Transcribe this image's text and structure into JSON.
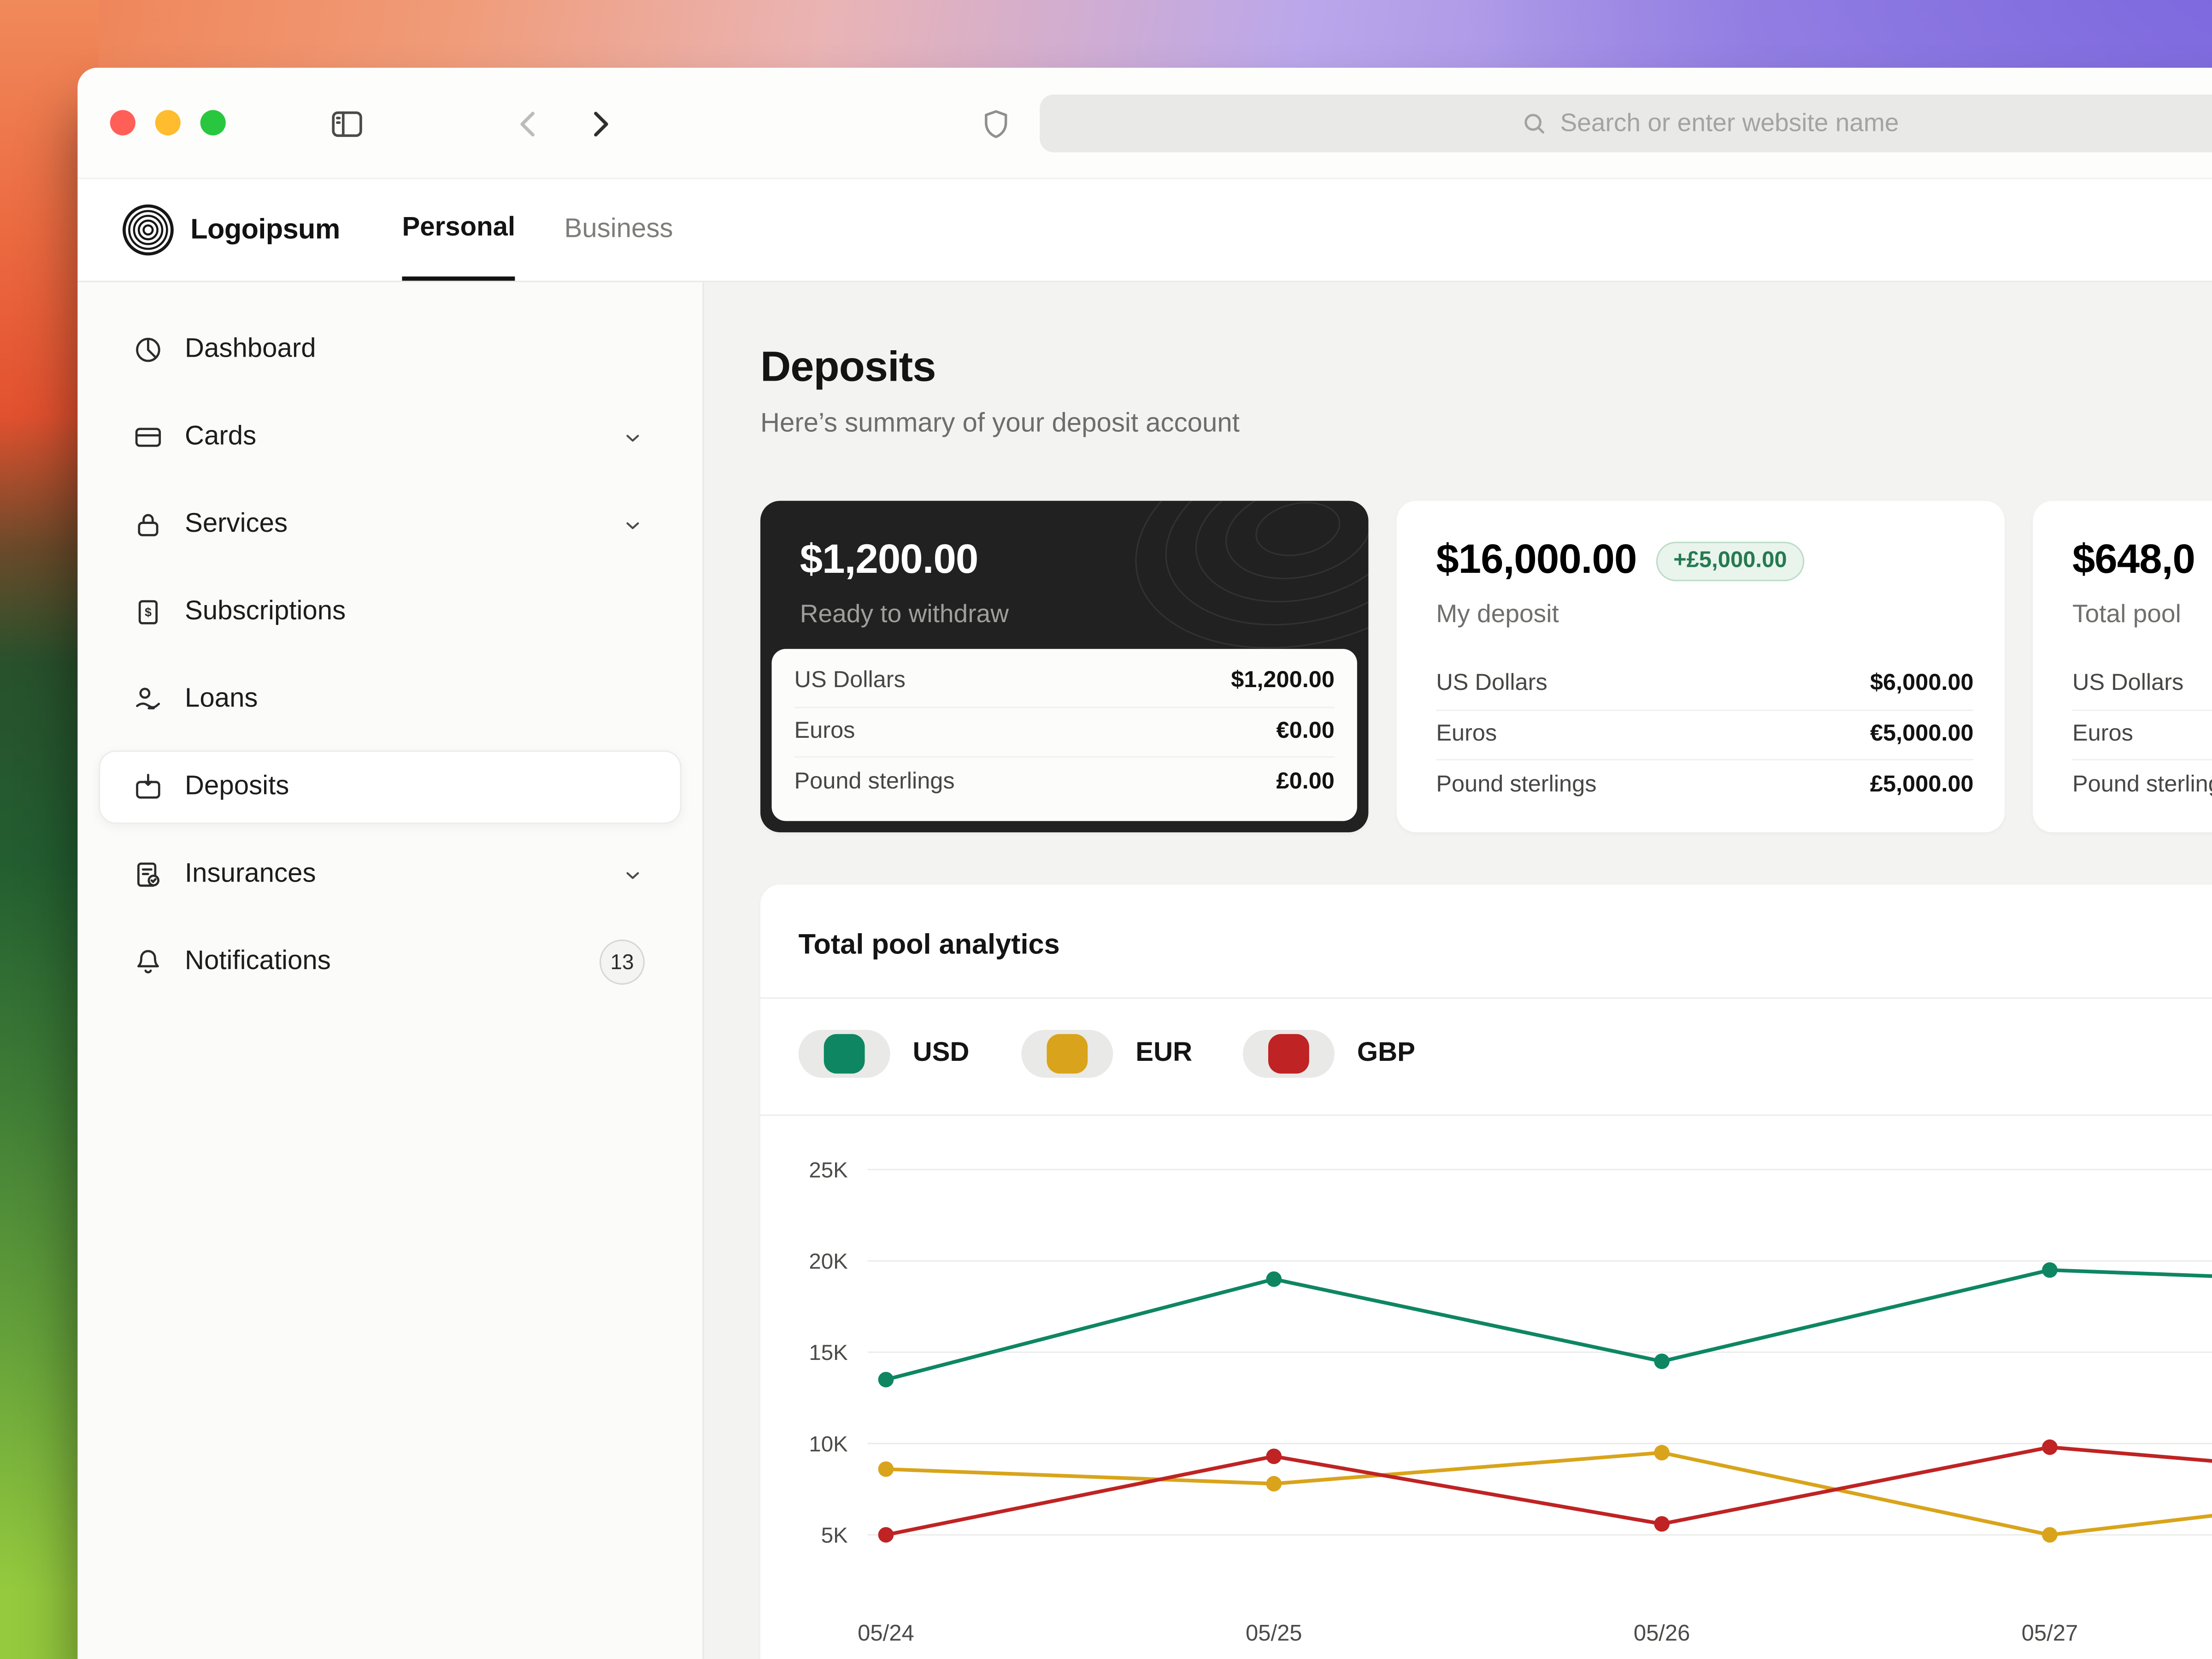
{
  "browser": {
    "search_placeholder": "Search or enter website name"
  },
  "header": {
    "brand": "Logoipsum",
    "tabs": [
      {
        "label": "Personal",
        "active": true
      },
      {
        "label": "Business",
        "active": false
      }
    ]
  },
  "sidebar": {
    "items": [
      {
        "label": "Dashboard",
        "icon": "dashboard-icon"
      },
      {
        "label": "Cards",
        "icon": "card-icon",
        "chevron": true
      },
      {
        "label": "Services",
        "icon": "lock-icon",
        "chevron": true
      },
      {
        "label": "Subscriptions",
        "icon": "receipt-icon"
      },
      {
        "label": "Loans",
        "icon": "hand-coin-icon"
      },
      {
        "label": "Deposits",
        "icon": "deposit-box-icon",
        "active": true
      },
      {
        "label": "Insurances",
        "icon": "policy-icon",
        "chevron": true
      },
      {
        "label": "Notifications",
        "icon": "bell-icon",
        "badge": "13"
      }
    ]
  },
  "main": {
    "title": "Deposits",
    "subtitle": "Here’s summary of your deposit account",
    "cards": [
      {
        "amount": "$1,200.00",
        "caption": "Ready to withdraw",
        "theme": "dark",
        "rows": [
          {
            "label": "US Dollars",
            "value": "$1,200.00"
          },
          {
            "label": "Euros",
            "value": "€0.00"
          },
          {
            "label": "Pound sterlings",
            "value": "£0.00"
          }
        ]
      },
      {
        "amount": "$16,000.00",
        "badge": "+£5,000.00",
        "caption": "My deposit",
        "theme": "light",
        "rows": [
          {
            "label": "US Dollars",
            "value": "$6,000.00"
          },
          {
            "label": "Euros",
            "value": "€5,000.00"
          },
          {
            "label": "Pound sterlings",
            "value": "£5,000.00"
          }
        ]
      },
      {
        "amount": "$648,0",
        "caption": "Total pool",
        "theme": "light",
        "rows": [
          {
            "label": "US Dollars",
            "value": ""
          },
          {
            "label": "Euros",
            "value": ""
          },
          {
            "label": "Pound sterlings",
            "value": ""
          }
        ]
      }
    ]
  },
  "analytics": {
    "title": "Total pool analytics",
    "toggles": [
      {
        "label": "USD",
        "color": "#0e8662",
        "on": true
      },
      {
        "label": "EUR",
        "color": "#d9a41b",
        "on": true
      },
      {
        "label": "GBP",
        "color": "#bf2323",
        "on": true
      }
    ]
  },
  "chart_data": {
    "type": "line",
    "title": "Total pool analytics",
    "categories": [
      "05/24",
      "05/25",
      "05/26",
      "05/27"
    ],
    "y_ticks": [
      "5K",
      "10K",
      "15K",
      "20K",
      "25K"
    ],
    "ylim_thousands": [
      5,
      25
    ],
    "grid": true,
    "legend_position": "top-toggles",
    "series": [
      {
        "name": "USD",
        "color": "#0e8662",
        "values": [
          13.5,
          19.0,
          14.5,
          19.5
        ],
        "offscreen_next": 18.7
      },
      {
        "name": "EUR",
        "color": "#d9a41b",
        "values": [
          8.6,
          7.8,
          9.5,
          5.0
        ],
        "offscreen_next": 7.5
      },
      {
        "name": "GBP",
        "color": "#bf2323",
        "values": [
          5.0,
          9.3,
          5.6,
          9.8
        ],
        "offscreen_next": 8.0
      }
    ]
  }
}
